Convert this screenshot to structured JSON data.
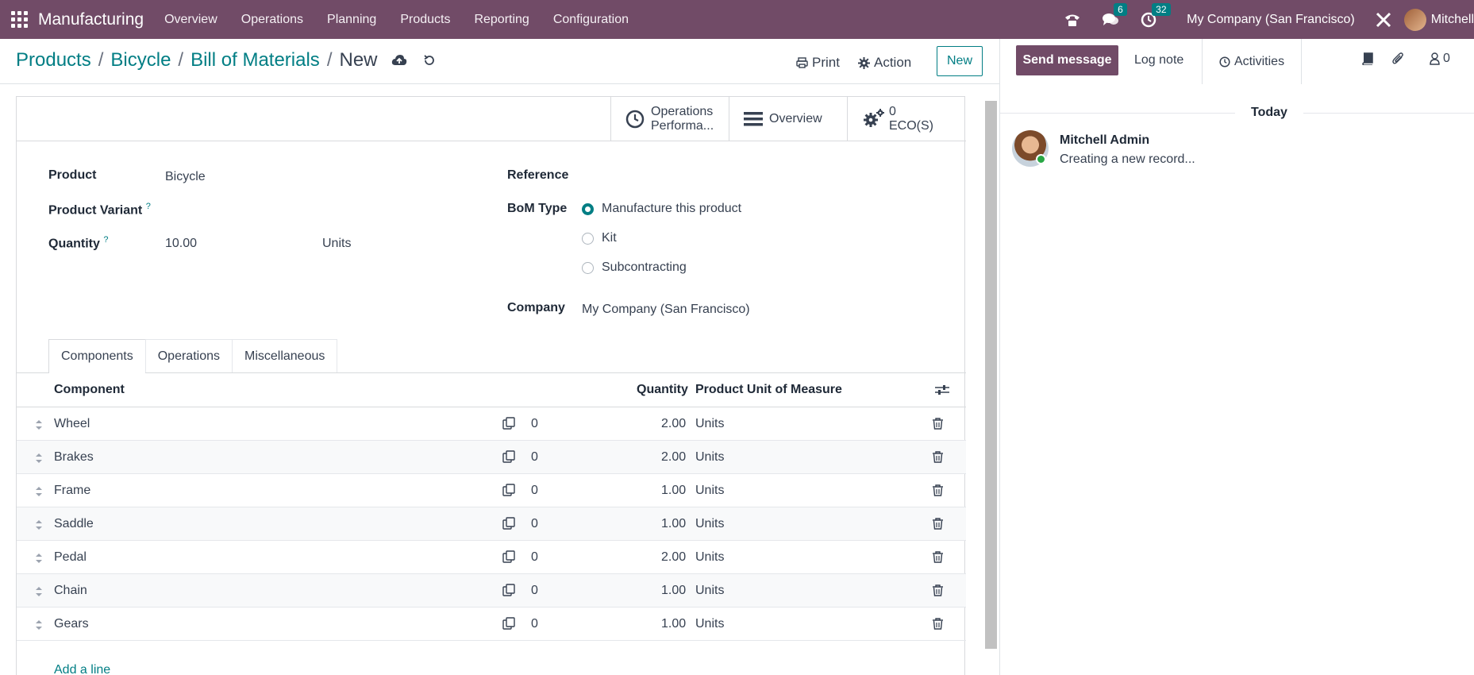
{
  "navbar": {
    "app_name": "Manufacturing",
    "menus": [
      "Overview",
      "Operations",
      "Planning",
      "Products",
      "Reporting",
      "Configuration"
    ],
    "messages_badge": "6",
    "activities_badge": "32",
    "company": "My Company (San Francisco)",
    "user": "Mitchell"
  },
  "breadcrumb": {
    "items": [
      "Products",
      "Bicycle",
      "Bill of Materials"
    ],
    "current": "New"
  },
  "control": {
    "print_label": "Print",
    "action_label": "Action",
    "new_label": "New"
  },
  "smart_buttons": {
    "operations_line1": "Operations",
    "operations_line2": "Performa...",
    "overview": "Overview",
    "eco_count": "0",
    "eco_label": "ECO(S)"
  },
  "form": {
    "product_label": "Product",
    "product_value": "Bicycle",
    "variant_label": "Product Variant",
    "quantity_label": "Quantity",
    "quantity_value": "10.00",
    "quantity_uom": "Units",
    "help_mark": "?",
    "reference_label": "Reference",
    "bom_type_label": "BoM Type",
    "bom_types": [
      "Manufacture this product",
      "Kit",
      "Subcontracting"
    ],
    "bom_type_selected": "Manufacture this product",
    "company_label": "Company",
    "company_value": "My Company (San Francisco)"
  },
  "tabs": [
    "Components",
    "Operations",
    "Miscellaneous"
  ],
  "components": {
    "headers": {
      "component": "Component",
      "quantity": "Quantity",
      "uom": "Product Unit of Measure"
    },
    "rows": [
      {
        "name": "Wheel",
        "count": "0",
        "qty": "2.00",
        "uom": "Units"
      },
      {
        "name": "Brakes",
        "count": "0",
        "qty": "2.00",
        "uom": "Units"
      },
      {
        "name": "Frame",
        "count": "0",
        "qty": "1.00",
        "uom": "Units"
      },
      {
        "name": "Saddle",
        "count": "0",
        "qty": "1.00",
        "uom": "Units"
      },
      {
        "name": "Pedal",
        "count": "0",
        "qty": "2.00",
        "uom": "Units"
      },
      {
        "name": "Chain",
        "count": "0",
        "qty": "1.00",
        "uom": "Units"
      },
      {
        "name": "Gears",
        "count": "0",
        "qty": "1.00",
        "uom": "Units"
      }
    ],
    "add_line": "Add a line"
  },
  "chatter": {
    "send_message": "Send message",
    "log_note": "Log note",
    "activities": "Activities",
    "followers_count": "0",
    "day_separator": "Today",
    "message_author": "Mitchell Admin",
    "message_body": "Creating a new record..."
  },
  "colors": {
    "brand": "#714B67",
    "accent": "#017e84"
  }
}
